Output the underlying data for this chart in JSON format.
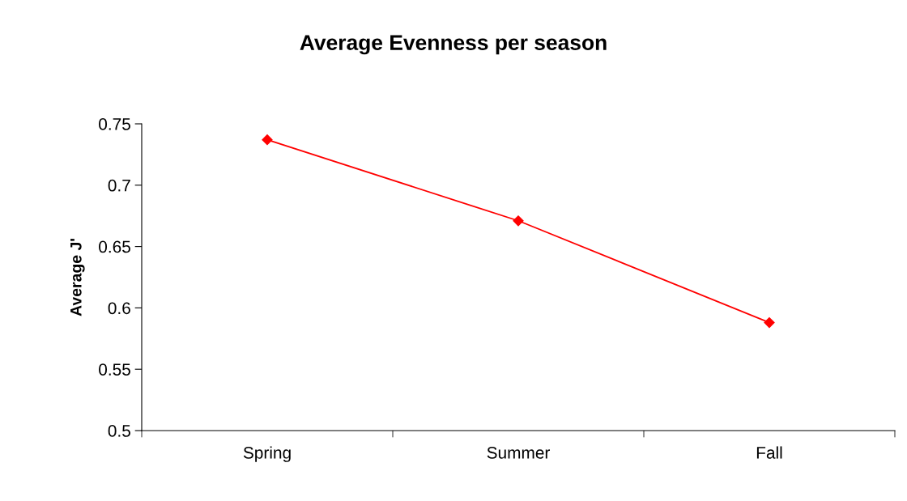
{
  "chart_data": {
    "type": "line",
    "title": "Average Evenness per season",
    "ylabel": "Average J'",
    "categories": [
      "Spring",
      "Summer",
      "Fall"
    ],
    "series": [
      {
        "color": "#ff0000",
        "values": [
          0.737,
          0.671,
          0.588
        ]
      }
    ],
    "ylim": [
      0.5,
      0.75
    ],
    "yticks": [
      0.5,
      0.55,
      0.6,
      0.65,
      0.7,
      0.75
    ],
    "marker": "diamond",
    "line_style": "solid",
    "grid": false,
    "legend": false
  }
}
